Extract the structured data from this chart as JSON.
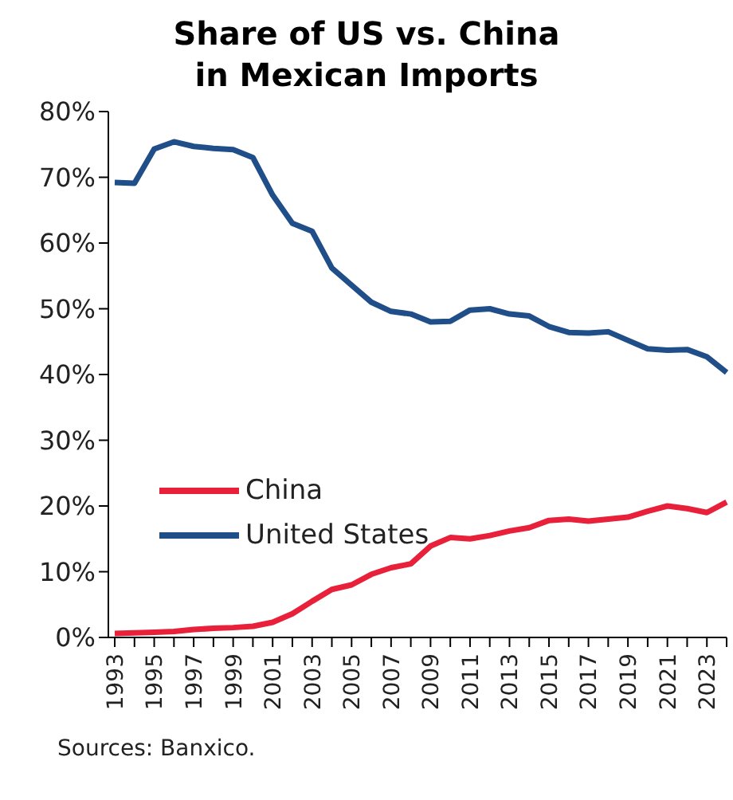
{
  "chart_data": {
    "type": "line",
    "title": "Share of US vs. China\nin Mexican Imports",
    "categories": [
      "1993",
      null,
      "1995",
      null,
      "1997",
      null,
      "1999",
      null,
      "2001",
      null,
      "2003",
      null,
      "2005",
      null,
      "2007",
      null,
      "2009",
      null,
      "2011",
      null,
      "2013",
      null,
      "2015",
      null,
      "2017",
      null,
      "2019",
      null,
      "2021",
      null,
      "2023",
      null
    ],
    "series": [
      {
        "name": "China",
        "color": "#e8203a",
        "values": [
          0.6,
          0.7,
          0.8,
          0.9,
          1.2,
          1.4,
          1.5,
          1.7,
          2.3,
          3.6,
          5.5,
          7.3,
          8.0,
          9.6,
          10.6,
          11.2,
          13.9,
          15.2,
          15.0,
          15.5,
          16.2,
          16.7,
          17.8,
          18.0,
          17.7,
          18.0,
          18.3,
          19.2,
          20.0,
          19.6,
          19.0,
          20.6
        ]
      },
      {
        "name": "United States",
        "color": "#1f4e89",
        "values": [
          69.2,
          69.1,
          74.3,
          75.4,
          74.7,
          74.4,
          74.2,
          73.0,
          67.3,
          63.0,
          61.8,
          56.2,
          53.6,
          51.0,
          49.6,
          49.2,
          48.0,
          48.1,
          49.8,
          50.0,
          49.2,
          48.9,
          47.3,
          46.4,
          46.3,
          46.5,
          45.2,
          43.9,
          43.7,
          43.8,
          42.7,
          40.3
        ]
      }
    ],
    "ylim": [
      0,
      80
    ],
    "yticks": [
      {
        "value": 0,
        "label": "0%"
      },
      {
        "value": 10,
        "label": "10%"
      },
      {
        "value": 20,
        "label": "20%"
      },
      {
        "value": 30,
        "label": "30%"
      },
      {
        "value": 40,
        "label": "40%"
      },
      {
        "value": 50,
        "label": "50%"
      },
      {
        "value": 60,
        "label": "60%"
      },
      {
        "value": 70,
        "label": "70%"
      },
      {
        "value": 80,
        "label": "80%"
      }
    ],
    "grid": false,
    "legend": "bottom left",
    "marker": "none",
    "line_style": "solid",
    "annotations": [
      "Sources: Banxico."
    ]
  }
}
